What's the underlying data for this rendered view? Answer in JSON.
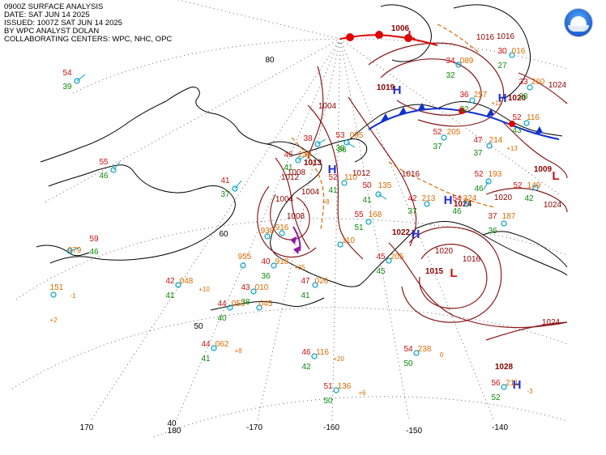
{
  "header": {
    "line1": "0900Z SURFACE ANALYSIS",
    "line2": "DATE: SAT JUN 14 2025",
    "line3": "ISSUED: 1007Z SAT JUN 14 2025",
    "line4": "BY WPC ANALYST DOLAN",
    "line5": "COLLABORATING CENTERS: WPC, NHC, OPC"
  },
  "logo": {
    "icon": "noaa-logo-icon"
  },
  "colors": {
    "isobar": "#8b1a1a",
    "pressure_label": "#8b0000",
    "low": "#d01010",
    "high": "#1e2fd0",
    "temp": "#cc1010",
    "dew": "#0b8a0b",
    "pres_code": "#d96a00",
    "station": "#00a0c8",
    "coast": "#000000",
    "grid": "#555555",
    "warm_front": "#e00000",
    "cold_front": "#1030d0",
    "trough": "#d96a00"
  },
  "grid_labels": [
    "80",
    "60",
    "50",
    "40",
    "170",
    "180",
    "-170",
    "-160",
    "-150",
    "-140"
  ],
  "pressure_centers": [
    {
      "type": "L",
      "value": "1006"
    },
    {
      "type": "H",
      "value": "1019"
    },
    {
      "type": "H",
      "value": "1020"
    },
    {
      "type": "H",
      "value": "1013"
    },
    {
      "type": "H",
      "value": "1022"
    },
    {
      "type": "H",
      "value": "1024"
    },
    {
      "type": "L",
      "value": "1009"
    },
    {
      "type": "L",
      "value": "1015"
    },
    {
      "type": "H",
      "value": "1028"
    }
  ],
  "isobar_labels": [
    "1004",
    "1008",
    "1012",
    "1016",
    "1016",
    "1008",
    "1004",
    "1004",
    "1020",
    "1016",
    "1020",
    "1024",
    "1024",
    "1016",
    "1012",
    "1024"
  ],
  "stations": [
    {
      "t": "54",
      "d": "39",
      "p": ""
    },
    {
      "t": "55",
      "d": "46",
      "p": ""
    },
    {
      "t": "59",
      "d": "46",
      "p": "079"
    },
    {
      "t": "41",
      "d": "37",
      "p": ""
    },
    {
      "t": "38",
      "d": "36",
      "p": ""
    },
    {
      "t": "46",
      "d": "41",
      "p": "238"
    },
    {
      "t": "53",
      "d": "36",
      "p": "095"
    },
    {
      "t": "52",
      "d": "41",
      "p": "110"
    },
    {
      "t": "50",
      "d": "41",
      "p": "135"
    },
    {
      "t": "55",
      "d": "51",
      "p": "168"
    },
    {
      "t": "42",
      "d": "37",
      "p": "213"
    },
    {
      "t": "54",
      "d": "46",
      "p": "324"
    },
    {
      "t": "52",
      "d": "46",
      "p": "193"
    },
    {
      "t": "52",
      "d": "42",
      "p": "149"
    },
    {
      "t": "37",
      "d": "36",
      "p": "187"
    },
    {
      "t": "47",
      "d": "37",
      "p": "214"
    },
    {
      "t": "52",
      "d": "37",
      "p": "205"
    },
    {
      "t": "36",
      "d": "32",
      "p": "257"
    },
    {
      "t": "33",
      "d": "28",
      "p": "260"
    },
    {
      "t": "52",
      "d": "43",
      "p": "116"
    },
    {
      "t": "30",
      "d": "27",
      "p": "016"
    },
    {
      "t": "34",
      "d": "32",
      "p": "089"
    },
    {
      "t": "45",
      "d": "45",
      "p": "205"
    },
    {
      "t": "40",
      "d": "36",
      "p": "918"
    },
    {
      "t": "47",
      "d": "41",
      "p": "026"
    },
    {
      "t": "42",
      "d": "41",
      "p": "048"
    },
    {
      "t": "43",
      "d": "38",
      "p": "010"
    },
    {
      "t": "44",
      "d": "40",
      "p": "053"
    },
    {
      "t": "44",
      "d": "41",
      "p": "062"
    },
    {
      "t": "46",
      "d": "42",
      "p": "116"
    },
    {
      "t": "51",
      "d": "50",
      "p": "136"
    },
    {
      "t": "54",
      "d": "50",
      "p": "238"
    },
    {
      "t": "56",
      "d": "52",
      "p": "211"
    },
    {
      "t": "",
      "d": "",
      "p": "151"
    },
    {
      "t": "",
      "d": "",
      "p": "955"
    },
    {
      "t": "",
      "d": "",
      "p": "938"
    },
    {
      "t": "",
      "d": "",
      "p": "916"
    },
    {
      "t": "",
      "d": "",
      "p": "110"
    },
    {
      "t": "",
      "d": "",
      "p": "045"
    }
  ],
  "tendencies": [
    "-1",
    "+2",
    "+10",
    "+35",
    "+8",
    "+20",
    "+6",
    "0",
    "-3",
    "+13",
    "+12",
    "+8"
  ]
}
